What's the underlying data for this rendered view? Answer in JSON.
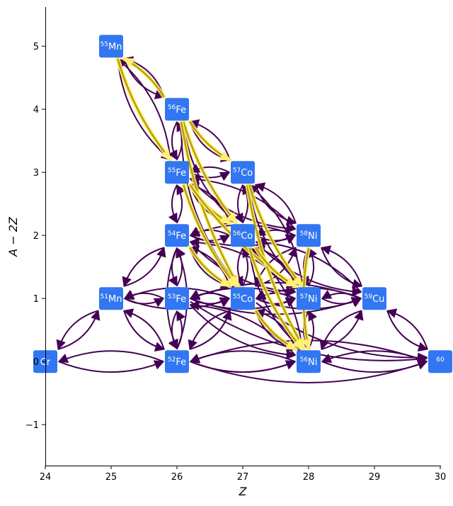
{
  "chart_data": {
    "type": "network",
    "xlabel": "Z",
    "ylabel": "A − 2Z",
    "xlim": [
      24,
      30
    ],
    "ylim": [
      -1.65,
      5.62
    ],
    "x_ticks": [
      "24",
      "25",
      "26",
      "27",
      "28",
      "29",
      "30"
    ],
    "y_ticks": [
      "−1",
      "0",
      "1",
      "2",
      "3",
      "4",
      "5"
    ],
    "colors": {
      "node": "#3277f1",
      "edge": "#440154",
      "highlight_edge": "#b8a106",
      "highlight_glow": "#fff176"
    },
    "nodes": [
      {
        "id": "cr",
        "mass": "",
        "el": "Cr",
        "z": 24,
        "n": 0
      },
      {
        "id": "mn55",
        "mass": "55",
        "el": "Mn",
        "z": 25,
        "n": 5
      },
      {
        "id": "mn51",
        "mass": "51",
        "el": "Mn",
        "z": 25,
        "n": 1
      },
      {
        "id": "fe56",
        "mass": "56",
        "el": "Fe",
        "z": 26,
        "n": 4
      },
      {
        "id": "fe55",
        "mass": "55",
        "el": "Fe",
        "z": 26,
        "n": 3
      },
      {
        "id": "fe54",
        "mass": "54",
        "el": "Fe",
        "z": 26,
        "n": 2
      },
      {
        "id": "fe53",
        "mass": "53",
        "el": "Fe",
        "z": 26,
        "n": 1
      },
      {
        "id": "fe52",
        "mass": "52",
        "el": "Fe",
        "z": 26,
        "n": 0
      },
      {
        "id": "co57",
        "mass": "57",
        "el": "Co",
        "z": 27,
        "n": 3
      },
      {
        "id": "co56",
        "mass": "56",
        "el": "Co",
        "z": 27,
        "n": 2
      },
      {
        "id": "co55",
        "mass": "55",
        "el": "Co",
        "z": 27,
        "n": 1
      },
      {
        "id": "ni58",
        "mass": "58",
        "el": "Ni",
        "z": 28,
        "n": 2
      },
      {
        "id": "ni57",
        "mass": "57",
        "el": "Ni",
        "z": 28,
        "n": 1
      },
      {
        "id": "ni56",
        "mass": "56",
        "el": "Ni",
        "z": 28,
        "n": 0
      },
      {
        "id": "cu59",
        "mass": "59",
        "el": "Cu",
        "z": 29,
        "n": 1
      },
      {
        "id": "zn60",
        "mass": "60",
        "el": "",
        "z": 30,
        "n": 0
      }
    ],
    "edges": [
      [
        "cr",
        "mn51"
      ],
      [
        "mn51",
        "cr"
      ],
      [
        "cr",
        "fe52"
      ],
      [
        "fe52",
        "cr"
      ],
      [
        "mn51",
        "fe52"
      ],
      [
        "fe52",
        "mn51"
      ],
      [
        "mn51",
        "fe54"
      ],
      [
        "fe54",
        "mn51"
      ],
      [
        "mn51",
        "fe53"
      ],
      [
        "fe53",
        "mn51"
      ],
      [
        "mn51",
        "co55"
      ],
      [
        "co55",
        "mn51"
      ],
      [
        "mn55",
        "fe56"
      ],
      [
        "fe56",
        "mn55"
      ],
      [
        "mn55",
        "fe55"
      ],
      [
        "fe55",
        "mn55"
      ],
      [
        "fe56",
        "fe55"
      ],
      [
        "fe55",
        "fe56"
      ],
      [
        "fe56",
        "co57"
      ],
      [
        "co57",
        "fe56"
      ],
      [
        "fe56",
        "co56"
      ],
      [
        "fe56",
        "co55"
      ],
      [
        "fe55",
        "fe54"
      ],
      [
        "fe54",
        "fe55"
      ],
      [
        "fe55",
        "co57"
      ],
      [
        "co57",
        "fe55"
      ],
      [
        "fe55",
        "co56"
      ],
      [
        "co56",
        "fe55"
      ],
      [
        "fe55",
        "ni58"
      ],
      [
        "ni58",
        "fe55"
      ],
      [
        "fe54",
        "fe53"
      ],
      [
        "fe53",
        "fe54"
      ],
      [
        "fe54",
        "co56"
      ],
      [
        "co56",
        "fe54"
      ],
      [
        "fe54",
        "co55"
      ],
      [
        "co55",
        "fe54"
      ],
      [
        "fe54",
        "ni58"
      ],
      [
        "ni58",
        "fe54"
      ],
      [
        "fe54",
        "ni57"
      ],
      [
        "ni57",
        "fe54"
      ],
      [
        "fe54",
        "fe52"
      ],
      [
        "fe52",
        "fe54"
      ],
      [
        "fe53",
        "fe52"
      ],
      [
        "fe52",
        "fe53"
      ],
      [
        "fe53",
        "co55"
      ],
      [
        "co55",
        "fe53"
      ],
      [
        "fe53",
        "ni57"
      ],
      [
        "ni57",
        "fe53"
      ],
      [
        "fe53",
        "ni56"
      ],
      [
        "ni56",
        "fe53"
      ],
      [
        "fe53",
        "cu59"
      ],
      [
        "cu59",
        "fe53"
      ],
      [
        "fe52",
        "co55"
      ],
      [
        "co55",
        "fe52"
      ],
      [
        "fe52",
        "ni56"
      ],
      [
        "ni56",
        "fe52"
      ],
      [
        "co57",
        "co56"
      ],
      [
        "co56",
        "co57"
      ],
      [
        "co57",
        "ni58"
      ],
      [
        "ni58",
        "co57"
      ],
      [
        "co57",
        "ni57"
      ],
      [
        "ni57",
        "co57"
      ],
      [
        "co56",
        "co55"
      ],
      [
        "co55",
        "co56"
      ],
      [
        "co56",
        "ni58"
      ],
      [
        "ni58",
        "co56"
      ],
      [
        "co56",
        "ni57"
      ],
      [
        "ni57",
        "co56"
      ],
      [
        "co56",
        "cu59"
      ],
      [
        "cu59",
        "co56"
      ],
      [
        "co56",
        "ni56"
      ],
      [
        "ni56",
        "co56"
      ],
      [
        "co55",
        "ni57"
      ],
      [
        "ni57",
        "co55"
      ],
      [
        "co55",
        "ni56"
      ],
      [
        "ni56",
        "co55"
      ],
      [
        "co55",
        "cu59"
      ],
      [
        "cu59",
        "co55"
      ],
      [
        "co55",
        "ni58"
      ],
      [
        "ni58",
        "co55"
      ],
      [
        "ni58",
        "ni57"
      ],
      [
        "ni57",
        "ni58"
      ],
      [
        "ni58",
        "cu59"
      ],
      [
        "cu59",
        "ni58"
      ],
      [
        "ni57",
        "ni56"
      ],
      [
        "ni56",
        "ni57"
      ],
      [
        "ni57",
        "cu59"
      ],
      [
        "cu59",
        "ni57"
      ],
      [
        "ni56",
        "cu59"
      ],
      [
        "cu59",
        "ni56"
      ],
      [
        "ni56",
        "zn60"
      ],
      [
        "zn60",
        "ni56"
      ],
      [
        "cu59",
        "zn60"
      ],
      [
        "zn60",
        "cu59"
      ],
      [
        "fe52",
        "zn60"
      ],
      [
        "zn60",
        "fe52"
      ],
      [
        "fe52",
        "ni56"
      ],
      [
        "co55",
        "zn60"
      ],
      [
        "fe53",
        "zn60"
      ]
    ],
    "highlighted_edges": [
      [
        "mn55",
        "fe55"
      ],
      [
        "fe56",
        "mn55"
      ],
      [
        "mn55",
        "fe55"
      ],
      [
        "fe56",
        "co56"
      ],
      [
        "fe56",
        "co55"
      ],
      [
        "fe56",
        "co57"
      ],
      [
        "fe55",
        "co55"
      ],
      [
        "fe55",
        "co56"
      ],
      [
        "fe55",
        "ni57"
      ],
      [
        "co57",
        "ni56"
      ],
      [
        "co57",
        "ni57"
      ],
      [
        "co56",
        "ni56"
      ],
      [
        "co56",
        "ni57"
      ],
      [
        "co55",
        "ni56"
      ],
      [
        "fe54",
        "co55"
      ],
      [
        "ni58",
        "ni56"
      ]
    ]
  }
}
